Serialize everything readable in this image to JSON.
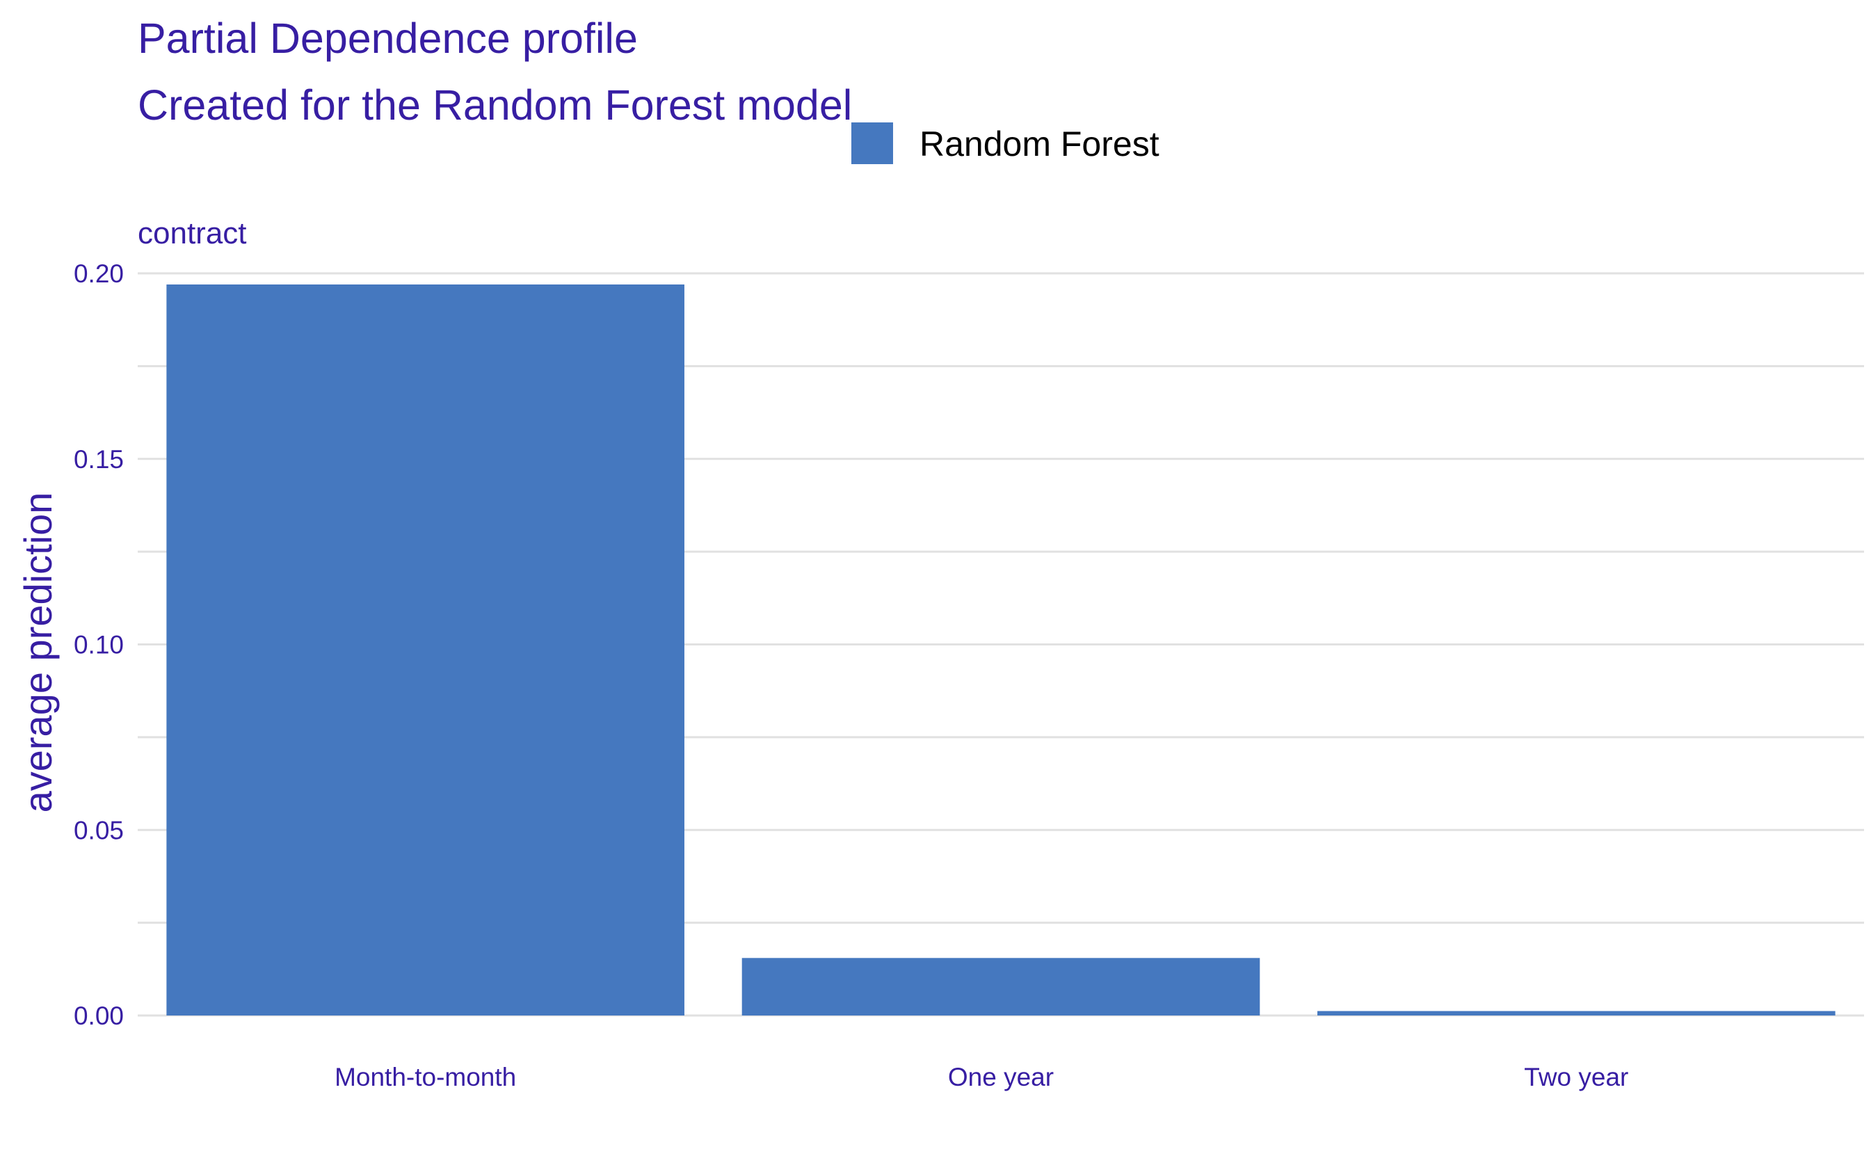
{
  "colors": {
    "text": "#371ea3",
    "bar": "#4578bf",
    "grid": "#e1e1e1"
  },
  "chart_data": {
    "type": "bar",
    "title": "Partial Dependence profile",
    "subtitle": "Created for the Random Forest model",
    "facet_label": "contract",
    "xlabel": "",
    "ylabel": "average prediction",
    "categories": [
      "Month-to-month",
      "One year",
      "Two year"
    ],
    "series": [
      {
        "name": "Random Forest",
        "values": [
          0.197,
          0.0155,
          0.0012
        ]
      }
    ],
    "ylim": [
      0,
      0.2
    ],
    "y_ticks": [
      "0.00",
      "0.05",
      "0.10",
      "0.15",
      "0.20"
    ],
    "y_tick_values": [
      0,
      0.05,
      0.1,
      0.15,
      0.2
    ],
    "grid": true,
    "legend_position": "top"
  }
}
